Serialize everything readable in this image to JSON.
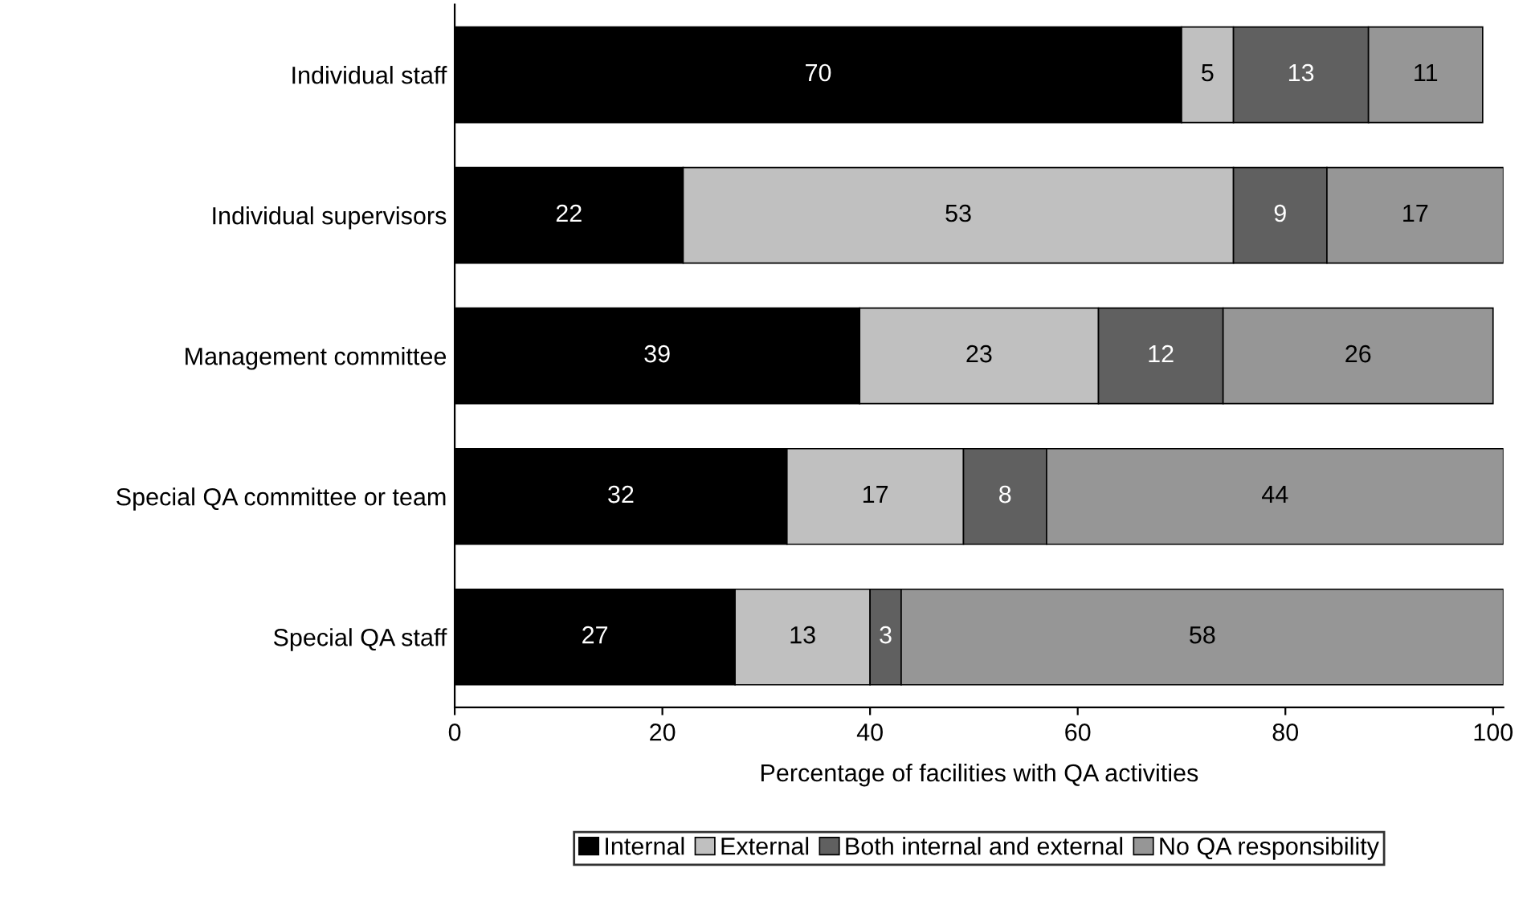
{
  "chart_data": {
    "type": "bar",
    "orientation": "horizontal",
    "stacked": true,
    "xlabel": "Percentage of facilities with QA activities",
    "categories": [
      "Individual staff",
      "Individual supervisors",
      "Management committee",
      "Special QA committee or team",
      "Special QA staff"
    ],
    "series": [
      {
        "name": "Internal",
        "color": "#000000",
        "values": [
          70,
          22,
          39,
          32,
          27
        ]
      },
      {
        "name": "External",
        "color": "#c0c0c0",
        "values": [
          5,
          53,
          23,
          17,
          13
        ]
      },
      {
        "name": "Both internal and external",
        "color": "#606060",
        "values": [
          13,
          9,
          12,
          8,
          3
        ]
      },
      {
        "name": "No QA responsibility",
        "color": "#969696",
        "values": [
          11,
          17,
          26,
          44,
          58
        ]
      }
    ],
    "xlim": [
      0,
      101
    ],
    "xticks": [
      0,
      20,
      40,
      60,
      80,
      100
    ],
    "data_labels": true,
    "grid": false,
    "legend": "bottom"
  }
}
